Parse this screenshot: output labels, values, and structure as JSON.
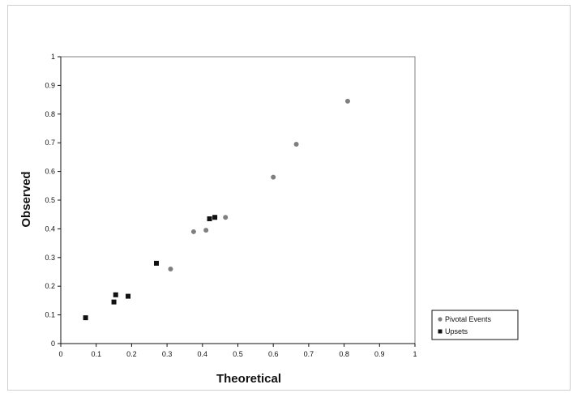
{
  "chart_data": {
    "type": "scatter",
    "title": "",
    "xlabel": "Theoretical",
    "ylabel": "Observed",
    "xlim": [
      0,
      1
    ],
    "ylim": [
      0,
      1
    ],
    "xticks": [
      "0",
      "0.1",
      "0.2",
      "0.3",
      "0.4",
      "0.5",
      "0.6",
      "0.7",
      "0.8",
      "0.9",
      "1"
    ],
    "yticks": [
      "0",
      "0.1",
      "0.2",
      "0.3",
      "0.4",
      "0.5",
      "0.6",
      "0.7",
      "0.8",
      "0.9",
      "1"
    ],
    "grid": false,
    "legend_position": "bottom-right",
    "series": [
      {
        "name": "Pivotal Events",
        "color": "#7f7f7f",
        "marker": "circle",
        "points": [
          {
            "x": 0.31,
            "y": 0.26
          },
          {
            "x": 0.375,
            "y": 0.39
          },
          {
            "x": 0.41,
            "y": 0.395
          },
          {
            "x": 0.465,
            "y": 0.44
          },
          {
            "x": 0.6,
            "y": 0.58
          },
          {
            "x": 0.665,
            "y": 0.695
          },
          {
            "x": 0.81,
            "y": 0.845
          }
        ]
      },
      {
        "name": "Upsets",
        "color": "#111111",
        "marker": "square",
        "points": [
          {
            "x": 0.07,
            "y": 0.09
          },
          {
            "x": 0.15,
            "y": 0.145
          },
          {
            "x": 0.155,
            "y": 0.17
          },
          {
            "x": 0.19,
            "y": 0.165
          },
          {
            "x": 0.27,
            "y": 0.28
          },
          {
            "x": 0.42,
            "y": 0.435
          },
          {
            "x": 0.435,
            "y": 0.44
          }
        ]
      }
    ]
  }
}
